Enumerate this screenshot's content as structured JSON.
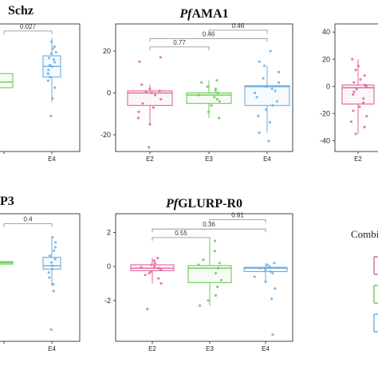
{
  "colors": {
    "E2": "#e0669a",
    "E3": "#6bcb55",
    "E4": "#6aaee3",
    "frame": "#444444",
    "bracket": "#888888"
  },
  "legend": {
    "title": "Combi",
    "keys": [
      "E2",
      "E3",
      "E4"
    ]
  },
  "chart_data": [
    {
      "type": "box",
      "title": {
        "pre": "",
        "italic": "",
        "rest": "Schz"
      },
      "categories": [
        "E3",
        "E4"
      ],
      "ylim": [
        -0.6,
        1.2
      ],
      "yticks": [],
      "boxes": [
        {
          "group": "E3",
          "q1": 0.3,
          "median": 0.38,
          "q3": 0.5
        },
        {
          "group": "E4",
          "q1": 0.45,
          "median": 0.6,
          "q3": 0.75,
          "whisker_low": 0.1,
          "whisker_high": 1.0,
          "points": [
            0.95,
            0.88,
            0.85,
            0.8,
            0.78,
            0.72,
            0.7,
            0.66,
            0.62,
            0.6,
            0.55,
            0.5,
            0.45,
            0.4,
            0.3,
            0.15,
            -0.1
          ]
        }
      ],
      "comparisons": [
        {
          "a": "E3",
          "b": "E4",
          "label": "0.027",
          "y": 1.1
        }
      ],
      "xticklabels": [
        "",
        "E4"
      ]
    },
    {
      "type": "box",
      "title": {
        "pre": "",
        "italic": "Pf",
        "rest": "AMA1"
      },
      "categories": [
        "E2",
        "E3",
        "E4"
      ],
      "ylim": [
        -28,
        33
      ],
      "yticks": [
        20,
        0,
        -20
      ],
      "boxes": [
        {
          "group": "E2",
          "q1": -6,
          "median": 0,
          "q3": 1,
          "whisker_low": -15,
          "whisker_high": 4,
          "points": [
            17,
            15,
            4,
            2,
            1,
            0.5,
            0,
            -1,
            -3,
            -5,
            -7,
            -9,
            -12,
            -15,
            -26
          ]
        },
        {
          "group": "E3",
          "q1": -5,
          "median": -1,
          "q3": 0,
          "whisker_low": -12,
          "whisker_high": 6,
          "points": [
            6,
            5,
            3,
            2,
            1,
            0,
            -1,
            -2,
            -3,
            -4,
            -6,
            -9,
            -12
          ]
        },
        {
          "group": "E4",
          "q1": -6,
          "median": 3,
          "q3": 3.5,
          "whisker_low": -19,
          "whisker_high": 13,
          "points": [
            20,
            15,
            13,
            10,
            7,
            5,
            3,
            2,
            1,
            0,
            -2,
            -4,
            -6,
            -8,
            -11,
            -14,
            -19,
            -23
          ]
        }
      ],
      "comparisons": [
        {
          "a": "E2",
          "b": "E3",
          "label": "0.77",
          "y": 22
        },
        {
          "a": "E2",
          "b": "E4",
          "label": "0.46",
          "y": 26
        },
        {
          "a": "E3",
          "b": "E4",
          "label": "0.46",
          "y": 30
        }
      ],
      "xticklabels": [
        "E2",
        "E3",
        "E4"
      ]
    },
    {
      "type": "box",
      "title": {
        "pre": "",
        "italic": "",
        "rest": ""
      },
      "categories": [
        "E2"
      ],
      "ylim": [
        -48,
        46
      ],
      "yticks": [
        40,
        20,
        0,
        -20,
        -40
      ],
      "boxes": [
        {
          "group": "E2",
          "q1": -13,
          "median": -1,
          "q3": 1,
          "whisker_low": -35,
          "whisker_high": 20,
          "points": [
            20,
            15,
            12,
            8,
            5,
            3,
            1,
            0,
            -2,
            -4,
            -6,
            -9,
            -12,
            -15,
            -18,
            -22,
            -26,
            -30,
            -35
          ]
        }
      ],
      "comparisons": [],
      "xticklabels": [
        "E2"
      ]
    },
    {
      "type": "box",
      "title": {
        "pre": "",
        "italic": "",
        "rest": "P3"
      },
      "categories": [
        "E3",
        "E4"
      ],
      "ylim": [
        -4.6,
        3.0
      ],
      "yticks": [],
      "boxes": [
        {
          "group": "E3",
          "q1": 0.0,
          "median": 0.08,
          "q3": 0.15
        },
        {
          "group": "E4",
          "q1": -0.3,
          "median": -0.1,
          "q3": 0.4,
          "whisker_low": -1.3,
          "whisker_high": 1.6,
          "points": [
            1.6,
            1.3,
            1.0,
            0.8,
            0.5,
            0.3,
            0.1,
            -0.1,
            -0.3,
            -0.5,
            -0.8,
            -1.2,
            -1.6,
            -3.9
          ]
        }
      ],
      "comparisons": [
        {
          "a": "E3",
          "b": "E4",
          "label": "0.4",
          "y": 2.4
        }
      ],
      "xticklabels": [
        "",
        "E4"
      ]
    },
    {
      "type": "box",
      "title": {
        "pre": "",
        "italic": "Pf",
        "rest": "GLURP-R0"
      },
      "categories": [
        "E2",
        "E3",
        "E4"
      ],
      "ylim": [
        -4.4,
        3.1
      ],
      "yticks": [
        2,
        0,
        -2
      ],
      "boxes": [
        {
          "group": "E2",
          "q1": -0.25,
          "median": -0.1,
          "q3": 0.1,
          "whisker_low": -1.0,
          "whisker_high": 0.5,
          "points": [
            0.5,
            0.35,
            0.2,
            0.1,
            0,
            -0.05,
            -0.1,
            -0.2,
            -0.3,
            -0.4,
            -0.5,
            -0.7,
            -1.0,
            -2.5
          ]
        },
        {
          "group": "E3",
          "q1": -0.95,
          "median": -0.1,
          "q3": 0.05,
          "whisker_low": -2.3,
          "whisker_high": 1.5,
          "points": [
            1.5,
            0.9,
            0.4,
            0.2,
            0.1,
            -0.1,
            -0.4,
            -0.8,
            -1.2,
            -1.7,
            -2.0,
            -2.3
          ]
        },
        {
          "group": "E4",
          "q1": -0.3,
          "median": -0.1,
          "q3": -0.05,
          "whisker_low": -0.9,
          "whisker_high": 0.2,
          "points": [
            0.2,
            0.1,
            0,
            -0.1,
            -0.2,
            -0.3,
            -0.4,
            -0.6,
            -0.9,
            -1.3,
            -1.9,
            -4.0
          ]
        }
      ],
      "comparisons": [
        {
          "a": "E2",
          "b": "E3",
          "label": "0.55",
          "y": 1.7
        },
        {
          "a": "E2",
          "b": "E4",
          "label": "0.36",
          "y": 2.2
        },
        {
          "a": "E3",
          "b": "E4",
          "label": "0.91",
          "y": 2.75
        }
      ],
      "xticklabels": [
        "E2",
        "E3",
        "E4"
      ]
    }
  ]
}
